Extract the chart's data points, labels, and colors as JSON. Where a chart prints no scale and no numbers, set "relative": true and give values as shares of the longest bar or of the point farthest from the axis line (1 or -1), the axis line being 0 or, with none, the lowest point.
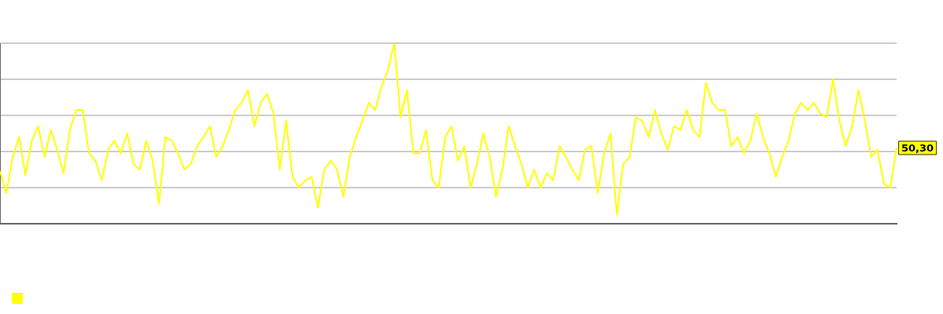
{
  "chart_data": {
    "type": "line",
    "relative": true,
    "grid": "y",
    "marker": "none",
    "line_style": "solid",
    "categories": [
      null,
      null,
      null,
      null,
      null,
      null,
      null,
      null,
      null,
      null,
      null,
      null,
      null,
      null,
      null,
      null,
      null,
      null,
      null,
      null,
      null,
      null,
      null,
      null,
      null,
      null,
      null,
      null,
      null,
      null,
      null,
      null,
      null,
      null,
      null,
      null,
      null,
      null,
      null,
      null,
      null,
      null,
      null,
      null,
      null,
      null,
      null,
      null,
      null,
      null,
      null,
      null,
      null,
      null,
      null,
      null,
      null,
      null,
      null,
      null,
      null,
      null,
      null,
      null,
      null,
      null,
      null,
      null,
      null,
      null,
      null,
      null,
      null,
      null,
      null,
      null,
      null,
      null,
      null,
      null,
      null,
      null,
      null,
      null,
      null,
      null,
      null,
      null,
      null,
      null,
      null,
      null,
      null,
      null,
      null,
      null,
      null,
      null,
      null,
      null,
      null,
      null,
      null,
      null,
      null,
      null,
      null,
      null,
      null,
      null,
      null,
      null,
      null,
      null,
      null,
      null,
      null,
      null,
      null,
      null,
      null,
      null,
      null,
      null,
      null,
      null,
      null,
      null,
      null,
      null,
      null,
      null,
      null,
      null,
      null,
      null,
      null,
      null,
      null,
      null,
      null,
      null
    ],
    "series": [
      {
        "color": "#ffff00",
        "values": [
          0.29,
          0.17,
          0.37,
          0.48,
          0.27,
          0.46,
          0.54,
          0.37,
          0.52,
          0.41,
          0.28,
          0.52,
          0.63,
          0.63,
          0.39,
          0.35,
          0.24,
          0.41,
          0.46,
          0.39,
          0.5,
          0.33,
          0.3,
          0.46,
          0.35,
          0.11,
          0.48,
          0.46,
          0.39,
          0.3,
          0.33,
          0.43,
          0.48,
          0.54,
          0.37,
          0.43,
          0.52,
          0.63,
          0.67,
          0.74,
          0.54,
          0.67,
          0.72,
          0.61,
          0.3,
          0.57,
          0.26,
          0.2,
          0.24,
          0.26,
          0.09,
          0.3,
          0.35,
          0.3,
          0.15,
          0.37,
          0.48,
          0.57,
          0.67,
          0.63,
          0.76,
          0.85,
          1,
          0.59,
          0.74,
          0.39,
          0.39,
          0.52,
          0.24,
          0.2,
          0.48,
          0.54,
          0.35,
          0.43,
          0.2,
          0.33,
          0.5,
          0.37,
          0.15,
          0.3,
          0.54,
          0.43,
          0.33,
          0.2,
          0.3,
          0.2,
          0.28,
          0.24,
          0.43,
          0.37,
          0.3,
          0.24,
          0.41,
          0.43,
          0.17,
          0.39,
          0.5,
          0.05,
          0.33,
          0.37,
          0.59,
          0.57,
          0.48,
          0.63,
          0.5,
          0.41,
          0.54,
          0.52,
          0.63,
          0.52,
          0.48,
          0.78,
          0.67,
          0.63,
          0.63,
          0.43,
          0.48,
          0.39,
          0.46,
          0.61,
          0.48,
          0.39,
          0.26,
          0.37,
          0.46,
          0.61,
          0.67,
          0.63,
          0.67,
          0.61,
          0.59,
          0.8,
          0.57,
          0.43,
          0.54,
          0.74,
          0.57,
          0.37,
          0.41,
          0.22,
          0.2,
          0.42
        ]
      }
    ],
    "annotations": [
      "50,30"
    ]
  }
}
